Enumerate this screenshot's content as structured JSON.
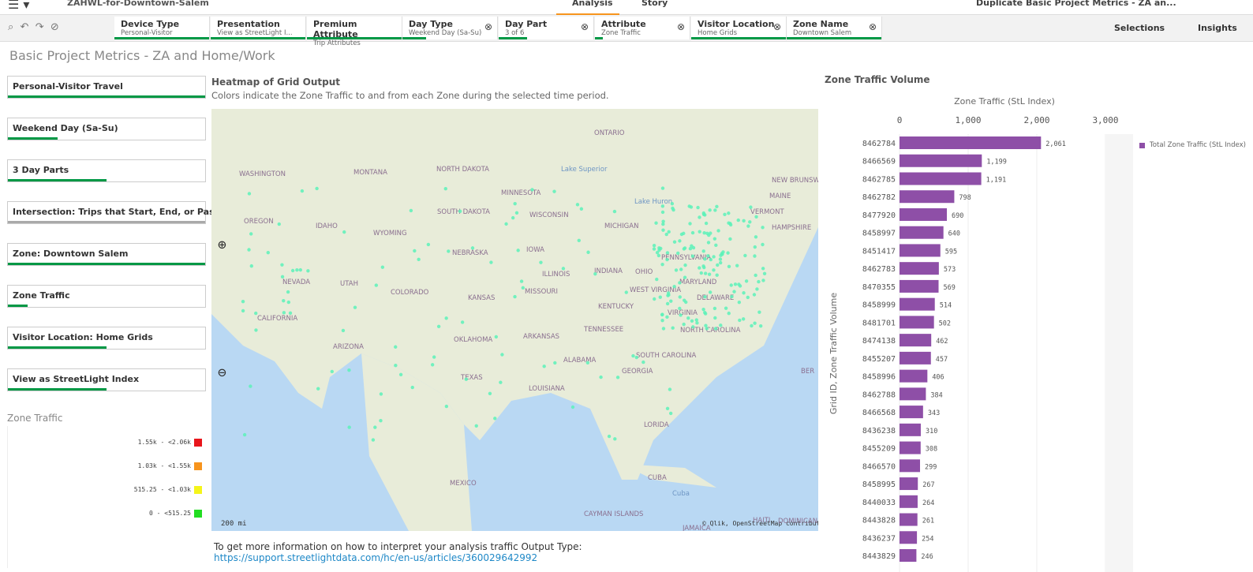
{
  "header": {
    "app_name": "ZAHWL-for-Downtown-Salem",
    "tabs": [
      "Analysis",
      "Story"
    ],
    "duplicate": "Duplicate",
    "sheet_name": "Basic Project Metrics - ZA an...",
    "selections": "Selections",
    "insights": "Insights"
  },
  "filters": [
    {
      "label": "Device Type",
      "value": "Personal-Visitor"
    },
    {
      "label": "Presentation",
      "value": "View as StreetLight I..."
    },
    {
      "label": "Premium Attribute",
      "value": "Trip Attributes"
    },
    {
      "label": "Day Type",
      "value": "Weekend Day (Sa-Su)"
    },
    {
      "label": "Day Part",
      "value": "3 of 6"
    },
    {
      "label": "Attribute",
      "value": "Zone Traffic"
    },
    {
      "label": "Visitor Location",
      "value": "Home Grids"
    },
    {
      "label": "Zone Name",
      "value": "Downtown Salem"
    }
  ],
  "page_title": "Basic Project Metrics - ZA and Home/Work",
  "sidebar": [
    "Personal-Visitor Travel",
    "Weekend Day (Sa-Su)",
    "3 Day Parts",
    "Intersection: Trips that Start, End, or Pass-Thro...",
    "Zone: Downtown Salem",
    "Zone Traffic",
    "Visitor Location: Home Grids",
    "View as StreetLight Index"
  ],
  "color_legend": {
    "title": "Zone Traffic",
    "items": [
      {
        "label": "1.55k - <2.06k",
        "color": "#e8151b"
      },
      {
        "label": "1.03k - <1.55k",
        "color": "#f7941d"
      },
      {
        "label": "515.25 - <1.03k",
        "color": "#f5f51a"
      },
      {
        "label": "0 - <515.25",
        "color": "#22dd22"
      }
    ]
  },
  "map": {
    "title": "Heatmap of Grid Output",
    "subtitle": "Colors indicate the Zone Traffic to and from each Zone during the selected time period.",
    "scale": "200 mi",
    "attribution": "© Qlik, OpenStreetMap contributors",
    "labels": [
      "ONTARIO",
      "WASHINGTON",
      "MONTANA",
      "NORTH DAKOTA",
      "Lake Superior",
      "MINNESOTA",
      "MAINE",
      "NEW BRUNSWI",
      "SOUTH DAKOTA",
      "WISCONSIN",
      "Lake Huron",
      "VERMONT",
      "OREGON",
      "IDAHO",
      "WYOMING",
      "MICHIGAN",
      "HAMPSHIRE",
      "IOWA",
      "NEBRASKA",
      "PENNSYLVANIA",
      "NEVADA",
      "UTAH",
      "ILLINOIS",
      "INDIANA",
      "OHIO",
      "COLORADO",
      "KANSAS",
      "MISSOURI",
      "WEST VIRGINIA",
      "MARYLAND",
      "DELAWARE",
      "CALIFORNIA",
      "KENTUCKY",
      "VIRGINIA",
      "TENNESSEE",
      "NORTH CAROLINA",
      "ARIZONA",
      "OKLAHOMA",
      "ARKANSAS",
      "ALABAMA",
      "SOUTH CAROLINA",
      "GEORGIA",
      "TEXAS",
      "LOUISIANA",
      "LORIDA",
      "MEXICO",
      "CUBA",
      "Cuba",
      "CAYMAN ISLANDS",
      "JAMAICA",
      "HAITI",
      "DOMINICAN",
      "BER"
    ]
  },
  "footer": {
    "text": "To get more information on how to interpret your analysis traffic Output Type:",
    "link": "https://support.streetlightdata.com/hc/en-us/articles/360029642992"
  },
  "chart_data": {
    "type": "bar",
    "orientation": "horizontal",
    "title": "Zone Traffic Volume",
    "x_label": "Zone Traffic (StL Index)",
    "y_label": "Grid ID, Zone Traffic Volume",
    "legend": "Total Zone Traffic (StL Index)",
    "color": "#8e4fa7",
    "categories": [
      "8462784",
      "8466569",
      "8462785",
      "8462782",
      "8477920",
      "8458997",
      "8451417",
      "8462783",
      "8470355",
      "8458999",
      "8481701",
      "8474138",
      "8455207",
      "8458996",
      "8462788",
      "8466568",
      "8436238",
      "8455209",
      "8466570",
      "8458995",
      "8440033",
      "8443828",
      "8436237",
      "8443829"
    ],
    "values": [
      2061,
      1199,
      1191,
      798,
      690,
      640,
      595,
      573,
      569,
      514,
      502,
      462,
      457,
      406,
      384,
      343,
      310,
      308,
      299,
      267,
      264,
      261,
      254,
      246
    ],
    "value_labels": [
      "2,061",
      "1,199",
      "1,191",
      "798",
      "690",
      "640",
      "595",
      "573",
      "569",
      "514",
      "502",
      "462",
      "457",
      "406",
      "384",
      "343",
      "310",
      "308",
      "299",
      "267",
      "264",
      "261",
      "254",
      "246"
    ],
    "xlim": [
      0,
      3000
    ],
    "xticks": [
      0,
      {
        "value": 1000,
        "label": "1,000"
      },
      {
        "value": 2000,
        "label": "2,000"
      },
      {
        "value": 3000,
        "label": "3,000"
      }
    ]
  }
}
